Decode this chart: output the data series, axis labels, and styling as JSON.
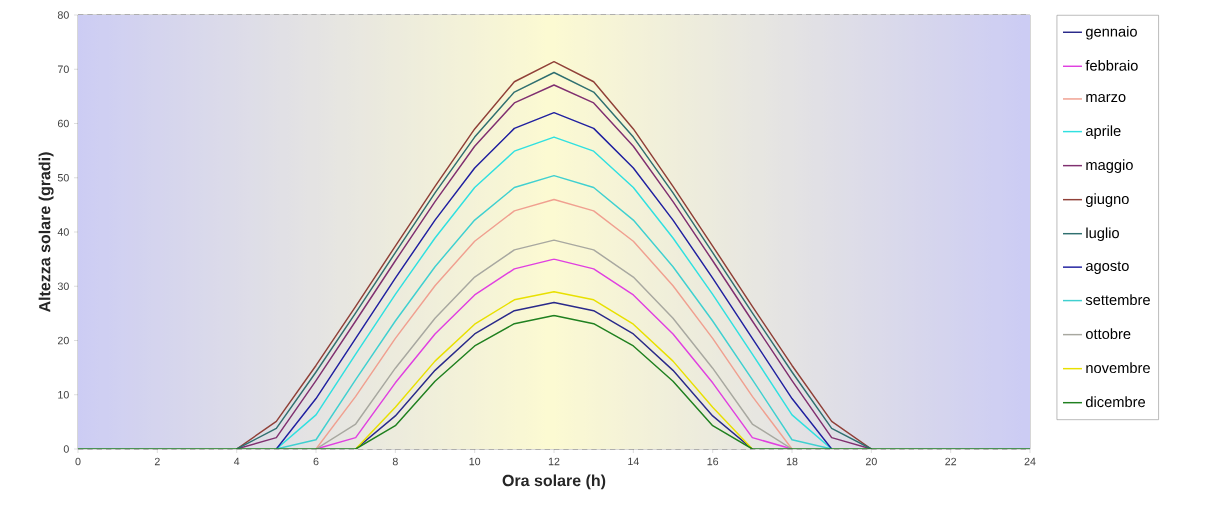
{
  "chart_data": {
    "type": "line",
    "xlabel": "Ora solare (h)",
    "ylabel": "Altezza solare (gradi)",
    "x": [
      0,
      1,
      2,
      3,
      4,
      5,
      6,
      7,
      8,
      9,
      10,
      11,
      12,
      13,
      14,
      15,
      16,
      17,
      18,
      19,
      20,
      21,
      22,
      23,
      24
    ],
    "series": [
      {
        "name": "gennaio",
        "color": "#2a2a8a",
        "values": [
          null,
          null,
          null,
          null,
          null,
          null,
          null,
          0,
          6.1,
          14.5,
          21.2,
          25.5,
          27.0,
          25.5,
          21.2,
          14.5,
          6.1,
          0,
          null,
          null,
          null,
          null,
          null,
          null,
          null
        ]
      },
      {
        "name": "febbraio",
        "color": "#e040e0",
        "values": [
          null,
          null,
          null,
          null,
          null,
          null,
          0,
          2.1,
          12.2,
          21.2,
          28.4,
          33.2,
          35.0,
          33.2,
          28.4,
          21.2,
          12.2,
          2.1,
          0,
          null,
          null,
          null,
          null,
          null,
          null
        ]
      },
      {
        "name": "marzo",
        "color": "#f0a090",
        "values": [
          null,
          null,
          null,
          null,
          null,
          null,
          0,
          9.7,
          20.4,
          30.1,
          38.3,
          43.9,
          46.0,
          43.9,
          38.3,
          30.1,
          20.4,
          9.7,
          0,
          null,
          null,
          null,
          null,
          null,
          null
        ]
      },
      {
        "name": "aprile",
        "color": "#30e0e0",
        "values": [
          null,
          null,
          null,
          null,
          null,
          0,
          6.3,
          17.5,
          28.5,
          38.9,
          48.2,
          54.9,
          57.5,
          54.9,
          48.2,
          38.9,
          28.5,
          17.5,
          6.3,
          0,
          null,
          null,
          null,
          null,
          null
        ]
      },
      {
        "name": "maggio",
        "color": "#803070",
        "values": [
          null,
          null,
          null,
          null,
          0,
          2.1,
          12.6,
          23.6,
          34.7,
          45.6,
          55.8,
          63.8,
          67.1,
          63.8,
          55.8,
          45.6,
          34.7,
          23.6,
          12.6,
          2.1,
          0,
          null,
          null,
          null,
          null
        ]
      },
      {
        "name": "giugno",
        "color": "#904038",
        "values": [
          null,
          null,
          null,
          null,
          0,
          5.1,
          15.4,
          26.3,
          37.4,
          48.4,
          59.0,
          67.7,
          71.4,
          67.7,
          59.0,
          48.4,
          37.4,
          26.3,
          15.4,
          5.1,
          0,
          null,
          null,
          null,
          null
        ]
      },
      {
        "name": "luglio",
        "color": "#307070",
        "values": [
          null,
          null,
          null,
          null,
          0,
          3.8,
          14.2,
          25.1,
          36.2,
          47.2,
          57.5,
          65.8,
          69.4,
          65.8,
          57.5,
          47.2,
          36.2,
          25.1,
          14.2,
          3.8,
          0,
          null,
          null,
          null,
          null
        ]
      },
      {
        "name": "agosto",
        "color": "#2020a0",
        "values": [
          null,
          null,
          null,
          null,
          null,
          0,
          9.3,
          20.4,
          31.5,
          42.2,
          51.8,
          59.1,
          62.0,
          59.1,
          51.8,
          42.2,
          31.5,
          20.4,
          9.3,
          0,
          null,
          null,
          null,
          null,
          null
        ]
      },
      {
        "name": "settembre",
        "color": "#40d0d0",
        "values": [
          null,
          null,
          null,
          null,
          null,
          0,
          1.7,
          12.8,
          23.6,
          33.6,
          42.2,
          48.2,
          50.4,
          48.2,
          42.2,
          33.6,
          23.6,
          12.8,
          1.7,
          0,
          null,
          null,
          null,
          null,
          null
        ]
      },
      {
        "name": "ottobre",
        "color": "#a8a8a0",
        "values": [
          null,
          null,
          null,
          null,
          null,
          null,
          0,
          4.6,
          14.9,
          24.1,
          31.7,
          36.7,
          38.5,
          36.7,
          31.7,
          24.1,
          14.9,
          4.6,
          0,
          null,
          null,
          null,
          null,
          null,
          null
        ]
      },
      {
        "name": "novembre",
        "color": "#e8e000",
        "values": [
          null,
          null,
          null,
          null,
          null,
          null,
          null,
          0,
          7.7,
          16.2,
          23.0,
          27.5,
          29.0,
          27.5,
          23.0,
          16.2,
          7.7,
          0,
          null,
          null,
          null,
          null,
          null,
          null,
          null
        ]
      },
      {
        "name": "dicembre",
        "color": "#208020",
        "values": [
          0,
          0,
          0,
          0,
          0,
          0,
          0,
          0,
          4.3,
          12.5,
          19.0,
          23.1,
          24.6,
          23.1,
          19.0,
          12.5,
          4.3,
          0,
          0,
          0,
          0,
          0,
          0,
          0,
          0
        ]
      }
    ],
    "xlim": [
      0,
      24
    ],
    "ylim": [
      0,
      80
    ],
    "xticks": [
      0,
      2,
      4,
      6,
      8,
      10,
      12,
      14,
      16,
      18,
      20,
      22,
      24
    ],
    "yticks": [
      0,
      10,
      20,
      30,
      40,
      50,
      60,
      70,
      80
    ],
    "grid": "y",
    "legend": "right",
    "marker": "none",
    "line_style": "solid"
  }
}
